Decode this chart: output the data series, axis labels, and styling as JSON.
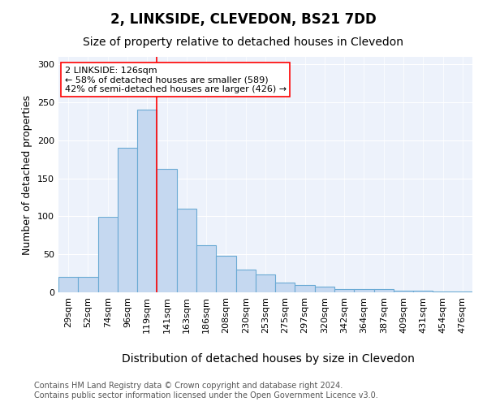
{
  "title1": "2, LINKSIDE, CLEVEDON, BS21 7DD",
  "title2": "Size of property relative to detached houses in Clevedon",
  "xlabel": "Distribution of detached houses by size in Clevedon",
  "ylabel": "Number of detached properties",
  "categories": [
    "29sqm",
    "52sqm",
    "74sqm",
    "96sqm",
    "119sqm",
    "141sqm",
    "163sqm",
    "186sqm",
    "208sqm",
    "230sqm",
    "253sqm",
    "275sqm",
    "297sqm",
    "320sqm",
    "342sqm",
    "364sqm",
    "387sqm",
    "409sqm",
    "431sqm",
    "454sqm",
    "476sqm"
  ],
  "values": [
    20,
    20,
    99,
    190,
    241,
    163,
    110,
    62,
    48,
    30,
    24,
    13,
    10,
    8,
    4,
    4,
    4,
    2,
    2,
    1,
    1
  ],
  "bar_color": "#c5d8f0",
  "bar_edge_color": "#6aaad4",
  "bar_linewidth": 0.8,
  "vline_color": "red",
  "vline_linewidth": 1.2,
  "annotation_text": "2 LINKSIDE: 126sqm\n← 58% of detached houses are smaller (589)\n42% of semi-detached houses are larger (426) →",
  "ylim": [
    0,
    310
  ],
  "yticks": [
    0,
    50,
    100,
    150,
    200,
    250,
    300
  ],
  "background_color": "#edf2fb",
  "footer_text": "Contains HM Land Registry data © Crown copyright and database right 2024.\nContains public sector information licensed under the Open Government Licence v3.0.",
  "title1_fontsize": 12,
  "title2_fontsize": 10,
  "xlabel_fontsize": 10,
  "ylabel_fontsize": 9,
  "tick_fontsize": 8,
  "annotation_fontsize": 8,
  "footer_fontsize": 7
}
